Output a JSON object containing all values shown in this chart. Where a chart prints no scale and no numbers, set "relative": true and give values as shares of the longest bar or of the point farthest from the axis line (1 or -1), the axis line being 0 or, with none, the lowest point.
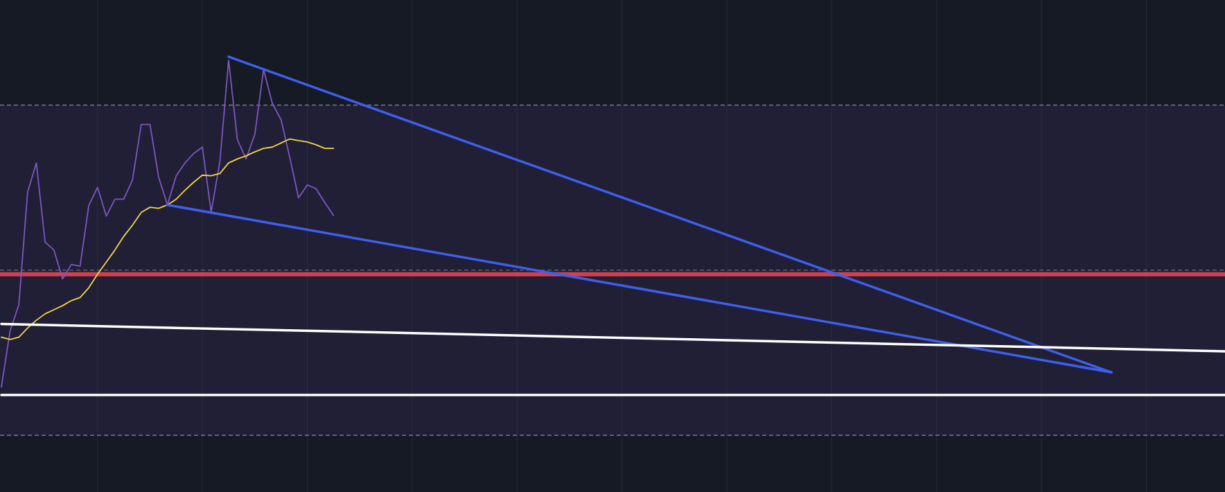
{
  "chart_data": {
    "type": "line",
    "relative": true,
    "grid": "x",
    "categories": [
      null,
      null,
      null,
      null,
      null,
      null,
      null,
      null,
      null,
      null,
      null,
      null,
      null,
      null,
      null,
      null,
      null,
      null,
      null,
      null,
      null,
      null,
      null,
      null,
      null,
      null,
      null,
      null,
      null,
      null,
      null,
      null,
      null,
      null,
      null,
      null,
      null,
      null,
      null,
      null,
      null,
      null,
      null,
      null,
      null,
      null,
      null,
      null,
      null,
      null,
      null,
      null,
      null,
      null,
      null,
      null,
      null,
      null,
      null,
      null,
      null,
      null,
      null,
      null,
      null,
      null,
      null,
      null,
      null,
      null,
      null,
      null,
      null,
      null,
      null,
      null,
      null,
      null,
      null,
      null,
      null,
      null,
      null,
      null,
      null,
      null,
      null,
      null,
      null,
      null,
      null,
      null,
      null,
      null,
      null,
      null,
      null,
      null,
      null,
      null,
      null,
      null,
      null,
      null,
      null,
      null,
      null,
      null,
      null,
      null,
      null,
      null,
      null,
      null,
      null,
      null,
      null,
      null,
      null,
      null,
      null,
      null,
      null,
      null,
      null,
      null,
      null,
      null,
      null,
      null,
      null,
      null,
      null,
      null,
      null,
      null,
      null,
      null,
      null,
      null,
      null
    ],
    "bands": [
      {
        "axis": "y",
        "from": -0.119,
        "to": 0.857,
        "color": "#201f35"
      }
    ],
    "ref_lines": [
      {
        "axis": "y",
        "value": 0.857,
        "color": "#8a8d99",
        "line_style": "dashed"
      },
      {
        "axis": "y",
        "value": -0.119,
        "color": "#8a8d99",
        "line_style": "dashed"
      },
      {
        "axis": "y",
        "value": 0.369,
        "color": "#6a6d7a",
        "line_style": "dashed"
      },
      {
        "axis": "y",
        "value": 0.357,
        "color": "#d2404e",
        "line_style": "solid"
      }
    ],
    "series": [
      {
        "color": "#7e57c2",
        "values": [
          0.024,
          0.19,
          0.267,
          0.6,
          0.686,
          0.452,
          0.429,
          0.343,
          0.386,
          0.381,
          0.56,
          0.614,
          0.529,
          0.579,
          0.579,
          0.636,
          0.8,
          0.8,
          0.643,
          0.562,
          0.648,
          0.686,
          0.714,
          0.733,
          0.54,
          0.69,
          0.99,
          0.755,
          0.698,
          0.771,
          0.962,
          0.862,
          0.814,
          0.702,
          0.583,
          0.621,
          0.61,
          0.569,
          0.531,
          null,
          null,
          null,
          null,
          null,
          null,
          null,
          null,
          null,
          null,
          null,
          null,
          null,
          null,
          null,
          null,
          null,
          null,
          null,
          null,
          null,
          null,
          null,
          null,
          null,
          null,
          null,
          null,
          null,
          null,
          null,
          null,
          null,
          null,
          null,
          null,
          null,
          null,
          null,
          null,
          null,
          null,
          null,
          null,
          null,
          null,
          null,
          null,
          null,
          null,
          null,
          null,
          null,
          null,
          null,
          null,
          null,
          null,
          null,
          null,
          null,
          null,
          null,
          null,
          null,
          null,
          null,
          null,
          null,
          null,
          null,
          null,
          null,
          null,
          null,
          null,
          null,
          null,
          null,
          null,
          null,
          null,
          null,
          null,
          null,
          null,
          null,
          null,
          null,
          null,
          null,
          null,
          null,
          null,
          null,
          null,
          null,
          null,
          null,
          null,
          null,
          null
        ]
      },
      {
        "color": "#f5d54a",
        "values": [
          0.171,
          0.164,
          0.171,
          0.198,
          0.221,
          0.24,
          0.252,
          0.264,
          0.279,
          0.288,
          0.317,
          0.357,
          0.393,
          0.429,
          0.469,
          0.502,
          0.54,
          0.555,
          0.552,
          0.562,
          0.579,
          0.605,
          0.629,
          0.65,
          0.648,
          0.655,
          0.686,
          0.698,
          0.707,
          0.719,
          0.729,
          0.733,
          0.745,
          0.757,
          0.752,
          0.748,
          0.74,
          0.729,
          0.729,
          null,
          null,
          null,
          null,
          null,
          null,
          null,
          null,
          null,
          null,
          null,
          null,
          null,
          null,
          null,
          null,
          null,
          null,
          null,
          null,
          null,
          null,
          null,
          null,
          null,
          null,
          null,
          null,
          null,
          null,
          null,
          null,
          null,
          null,
          null,
          null,
          null,
          null,
          null,
          null,
          null,
          null,
          null,
          null,
          null,
          null,
          null,
          null,
          null,
          null,
          null,
          null,
          null,
          null,
          null,
          null,
          null,
          null,
          null,
          null,
          null,
          null,
          null,
          null,
          null,
          null,
          null,
          null,
          null,
          null,
          null,
          null,
          null,
          null,
          null,
          null,
          null,
          null,
          null,
          null,
          null,
          null,
          null,
          null,
          null,
          null,
          null,
          null,
          null,
          null,
          null,
          null,
          null,
          null,
          null,
          null,
          null,
          null,
          null,
          null,
          null,
          null
        ]
      },
      {
        "color": "#3d5fec",
        "values": [
          null,
          null,
          null,
          null,
          null,
          null,
          null,
          null,
          null,
          null,
          null,
          null,
          null,
          null,
          null,
          null,
          null,
          null,
          null,
          null,
          null,
          null,
          null,
          null,
          null,
          null,
          1,
          null,
          null,
          null,
          null,
          null,
          null,
          null,
          null,
          null,
          null,
          null,
          null,
          null,
          null,
          null,
          null,
          null,
          null,
          null,
          null,
          null,
          null,
          null,
          null,
          null,
          null,
          null,
          null,
          null,
          null,
          null,
          null,
          null,
          null,
          null,
          null,
          null,
          null,
          null,
          null,
          null,
          null,
          null,
          null,
          null,
          null,
          null,
          null,
          null,
          null,
          null,
          null,
          null,
          null,
          null,
          null,
          null,
          null,
          null,
          null,
          null,
          null,
          null,
          null,
          null,
          null,
          null,
          null,
          null,
          null,
          null,
          null,
          null,
          null,
          null,
          null,
          null,
          null,
          null,
          null,
          null,
          null,
          null,
          null,
          null,
          null,
          null,
          null,
          null,
          null,
          null,
          null,
          null,
          null,
          null,
          null,
          null,
          null,
          null,
          null,
          0.067,
          null,
          null,
          null,
          null,
          null,
          null,
          null,
          null,
          null,
          null,
          null,
          null,
          null
        ]
      },
      {
        "color": "#3d5fec",
        "values": [
          null,
          null,
          null,
          null,
          null,
          null,
          null,
          null,
          null,
          null,
          null,
          null,
          null,
          null,
          null,
          null,
          null,
          null,
          null,
          0.562,
          null,
          null,
          null,
          null,
          null,
          null,
          null,
          null,
          null,
          null,
          null,
          null,
          null,
          null,
          null,
          null,
          null,
          null,
          null,
          null,
          null,
          null,
          null,
          null,
          null,
          null,
          null,
          null,
          null,
          null,
          null,
          null,
          null,
          null,
          null,
          null,
          null,
          null,
          null,
          null,
          null,
          null,
          null,
          null,
          null,
          null,
          null,
          null,
          null,
          null,
          null,
          null,
          null,
          null,
          null,
          null,
          null,
          null,
          null,
          null,
          null,
          null,
          null,
          null,
          null,
          null,
          null,
          null,
          null,
          null,
          null,
          null,
          null,
          null,
          null,
          null,
          null,
          null,
          null,
          null,
          null,
          null,
          null,
          null,
          null,
          null,
          null,
          null,
          null,
          null,
          null,
          null,
          null,
          null,
          null,
          null,
          null,
          null,
          null,
          null,
          null,
          null,
          null,
          null,
          null,
          null,
          null,
          0.067,
          null,
          null,
          null,
          null,
          null,
          null,
          null,
          null,
          null,
          null,
          null,
          null,
          null
        ]
      },
      {
        "color": "#ffffff",
        "values": [
          0.21,
          null,
          null,
          null,
          null,
          null,
          null,
          null,
          null,
          null,
          null,
          null,
          null,
          null,
          null,
          null,
          null,
          null,
          null,
          null,
          null,
          null,
          null,
          null,
          null,
          null,
          null,
          null,
          null,
          null,
          null,
          null,
          null,
          null,
          null,
          null,
          null,
          null,
          null,
          null,
          null,
          null,
          null,
          null,
          null,
          null,
          null,
          null,
          null,
          null,
          null,
          null,
          null,
          null,
          null,
          null,
          null,
          null,
          null,
          null,
          null,
          null,
          null,
          null,
          null,
          null,
          null,
          null,
          null,
          null,
          null,
          null,
          null,
          null,
          null,
          null,
          null,
          null,
          null,
          null,
          null,
          null,
          null,
          null,
          null,
          null,
          null,
          null,
          null,
          null,
          null,
          null,
          null,
          null,
          null,
          null,
          null,
          null,
          null,
          null,
          null,
          null,
          null,
          null,
          null,
          null,
          null,
          null,
          null,
          null,
          null,
          null,
          null,
          null,
          null,
          null,
          null,
          null,
          null,
          null,
          null,
          null,
          null,
          null,
          null,
          null,
          null,
          null,
          null,
          null,
          null,
          null,
          null,
          null,
          null,
          null,
          null,
          null,
          null,
          null,
          0.129
        ]
      },
      {
        "color": "#ffffff",
        "values": [
          0,
          null,
          null,
          null,
          null,
          null,
          null,
          null,
          null,
          null,
          null,
          null,
          null,
          null,
          null,
          null,
          null,
          null,
          null,
          null,
          null,
          null,
          null,
          null,
          null,
          null,
          null,
          null,
          null,
          null,
          null,
          null,
          null,
          null,
          null,
          null,
          null,
          null,
          null,
          null,
          null,
          null,
          null,
          null,
          null,
          null,
          null,
          null,
          null,
          null,
          null,
          null,
          null,
          null,
          null,
          null,
          null,
          null,
          null,
          null,
          null,
          null,
          null,
          null,
          null,
          null,
          null,
          null,
          null,
          null,
          null,
          null,
          null,
          null,
          null,
          null,
          null,
          null,
          null,
          null,
          null,
          null,
          null,
          null,
          null,
          null,
          null,
          null,
          null,
          null,
          null,
          null,
          null,
          null,
          null,
          null,
          null,
          null,
          null,
          null,
          null,
          null,
          null,
          null,
          null,
          null,
          null,
          null,
          null,
          null,
          null,
          null,
          null,
          null,
          null,
          null,
          null,
          null,
          null,
          null,
          null,
          null,
          null,
          null,
          null,
          null,
          null,
          null,
          null,
          null,
          null,
          null,
          null,
          null,
          null,
          null,
          null,
          null,
          null,
          null,
          0
        ]
      }
    ]
  }
}
